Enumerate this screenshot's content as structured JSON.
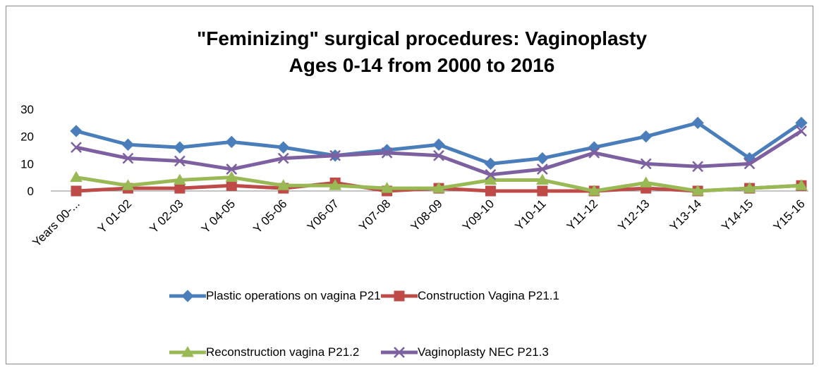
{
  "chart_data": {
    "type": "line",
    "title": [
      "\"Feminizing\" surgical procedures: Vaginoplasty",
      "Ages 0-14 from 2000 to 2016"
    ],
    "categories": [
      "Years 00-...",
      "Y 01-02",
      "Y 02-03",
      "Y 04-05",
      "Y 05-06",
      "Y06-07",
      "Y07-08",
      "Y08-09",
      "Y09-10",
      "Y10-11",
      "Y11-12",
      "Y12-13",
      "Y13-14",
      "Y14-15",
      "Y15-16"
    ],
    "series": [
      {
        "name": "Plastic operations on vagina P21",
        "color": "#4a7ebb",
        "marker": "diamond",
        "values": [
          22,
          17,
          16,
          18,
          16,
          13,
          15,
          17,
          10,
          12,
          16,
          20,
          25,
          12,
          25
        ]
      },
      {
        "name": "Construction Vagina P21.1",
        "color": "#be4b48",
        "marker": "square",
        "values": [
          0,
          1,
          1,
          2,
          1,
          3,
          0,
          1,
          0,
          0,
          0,
          1,
          0,
          1,
          2
        ]
      },
      {
        "name": "Reconstruction vagina P21.2",
        "color": "#98b954",
        "marker": "triangle",
        "values": [
          5,
          2,
          4,
          5,
          2,
          2,
          1,
          1,
          4,
          4,
          0,
          3,
          0,
          1,
          2
        ]
      },
      {
        "name": "Vaginoplasty NEC P21.3",
        "color": "#7d60a0",
        "marker": "x",
        "values": [
          16,
          12,
          11,
          8,
          12,
          13,
          14,
          13,
          6,
          8,
          14,
          10,
          9,
          10,
          22
        ]
      }
    ],
    "ylim": [
      0,
      30
    ],
    "yticks": [
      0,
      10,
      20,
      30
    ],
    "grid": false,
    "legend": "bottom"
  }
}
